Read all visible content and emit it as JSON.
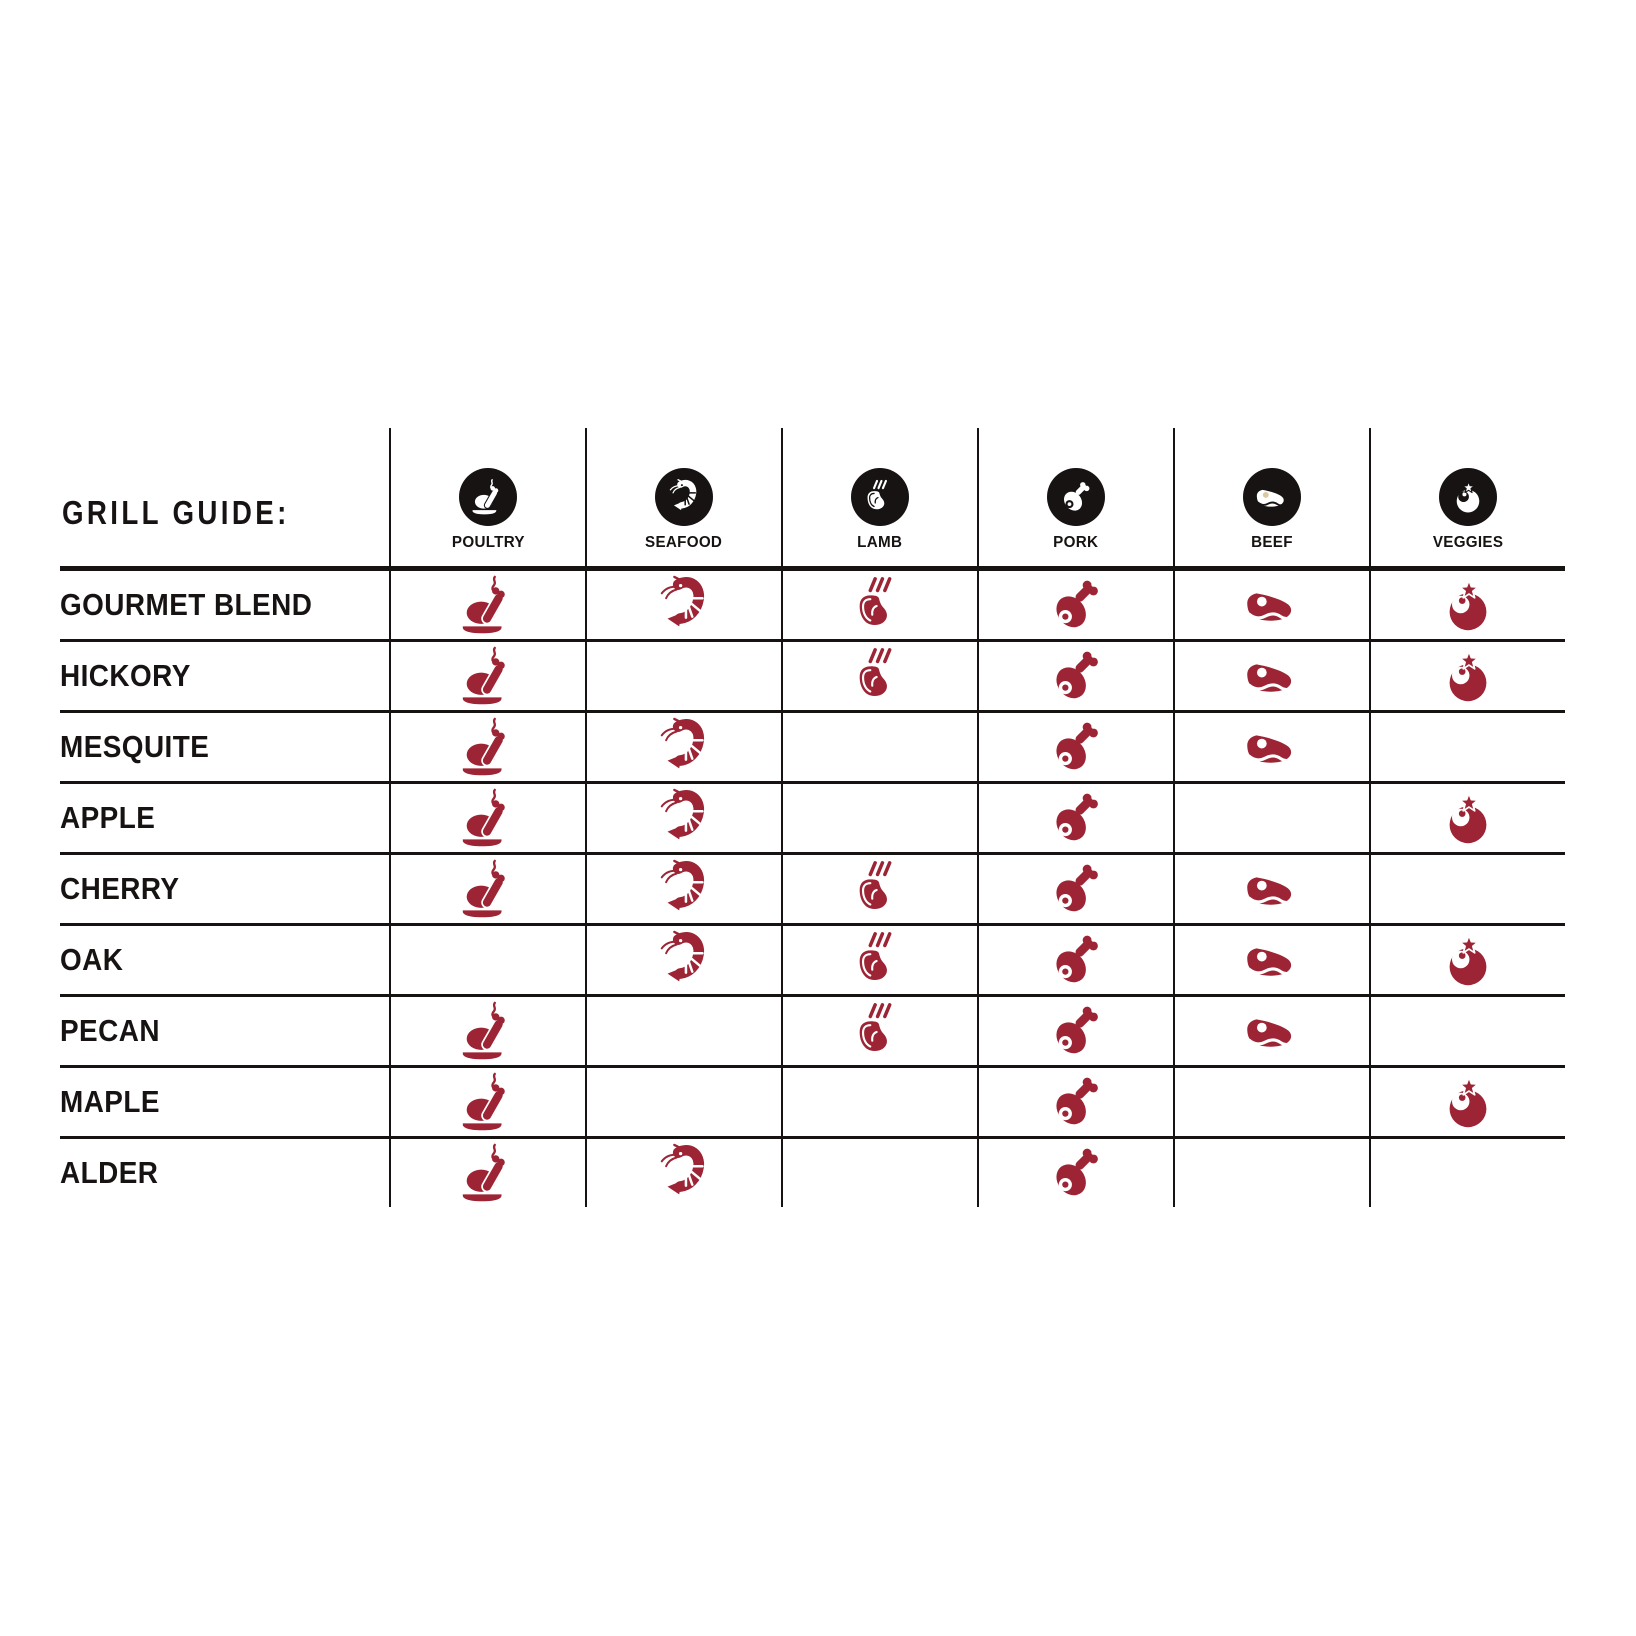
{
  "title": "GRILL GUIDE:",
  "colors": {
    "ink": "#171312",
    "accent": "#9C2434",
    "beef_fat_tint": "#DCC9A2"
  },
  "columns": [
    {
      "label": "POULTRY",
      "icon": "poultry-icon"
    },
    {
      "label": "SEAFOOD",
      "icon": "seafood-icon"
    },
    {
      "label": "LAMB",
      "icon": "lamb-icon"
    },
    {
      "label": "PORK",
      "icon": "pork-icon"
    },
    {
      "label": "BEEF",
      "icon": "beef-icon"
    },
    {
      "label": "VEGGIES",
      "icon": "veggies-icon"
    }
  ],
  "rows": [
    {
      "label": "GOURMET BLEND",
      "pairings": [
        true,
        true,
        true,
        true,
        true,
        true
      ]
    },
    {
      "label": "HICKORY",
      "pairings": [
        true,
        false,
        true,
        true,
        true,
        true
      ]
    },
    {
      "label": "MESQUITE",
      "pairings": [
        true,
        true,
        false,
        true,
        true,
        false
      ]
    },
    {
      "label": "APPLE",
      "pairings": [
        true,
        true,
        false,
        true,
        false,
        true
      ]
    },
    {
      "label": "CHERRY",
      "pairings": [
        true,
        true,
        true,
        true,
        true,
        false
      ]
    },
    {
      "label": "OAK",
      "pairings": [
        false,
        true,
        true,
        true,
        true,
        true
      ]
    },
    {
      "label": "PECAN",
      "pairings": [
        true,
        false,
        true,
        true,
        true,
        false
      ]
    },
    {
      "label": "MAPLE",
      "pairings": [
        true,
        false,
        false,
        true,
        false,
        true
      ]
    },
    {
      "label": "ALDER",
      "pairings": [
        true,
        true,
        false,
        true,
        false,
        false
      ]
    }
  ],
  "chart_data": {
    "type": "table",
    "title": "GRILL GUIDE:",
    "columns": [
      "POULTRY",
      "SEAFOOD",
      "LAMB",
      "PORK",
      "BEEF",
      "VEGGIES"
    ],
    "rows": [
      "GOURMET BLEND",
      "HICKORY",
      "MESQUITE",
      "APPLE",
      "CHERRY",
      "OAK",
      "PECAN",
      "MAPLE",
      "ALDER"
    ],
    "matrix": [
      [
        1,
        1,
        1,
        1,
        1,
        1
      ],
      [
        1,
        0,
        1,
        1,
        1,
        1
      ],
      [
        1,
        1,
        0,
        1,
        1,
        0
      ],
      [
        1,
        1,
        0,
        1,
        0,
        1
      ],
      [
        1,
        1,
        1,
        1,
        1,
        0
      ],
      [
        0,
        1,
        1,
        1,
        1,
        1
      ],
      [
        1,
        0,
        1,
        1,
        1,
        0
      ],
      [
        1,
        0,
        0,
        1,
        0,
        1
      ],
      [
        1,
        1,
        0,
        1,
        0,
        0
      ]
    ]
  }
}
